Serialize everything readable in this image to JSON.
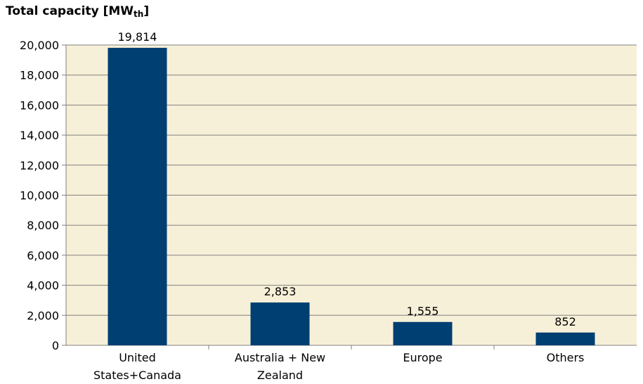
{
  "chart_data": {
    "type": "bar",
    "title_main": "Total capacity [MW",
    "title_sub": "th",
    "title_end": "]",
    "categories": [
      [
        "United",
        "States+Canada"
      ],
      [
        "Australia + New",
        "Zealand"
      ],
      [
        "Europe"
      ],
      [
        "Others"
      ]
    ],
    "values": [
      19814,
      2853,
      1555,
      852
    ],
    "data_labels": [
      "19,814",
      "2,853",
      "1,555",
      "852"
    ],
    "y_ticks": [
      0,
      2000,
      4000,
      6000,
      8000,
      10000,
      12000,
      14000,
      16000,
      18000,
      20000
    ],
    "y_tick_labels": [
      "0",
      "2,000",
      "4,000",
      "6,000",
      "8,000",
      "10,000",
      "12,000",
      "14,000",
      "16,000",
      "18,000",
      "20,000"
    ],
    "ylim": [
      0,
      20000
    ],
    "grid": true,
    "legend": "none",
    "colors": {
      "plot_bg": "#f7f0d8",
      "bar": "#003f72",
      "axis": "#808080"
    }
  }
}
